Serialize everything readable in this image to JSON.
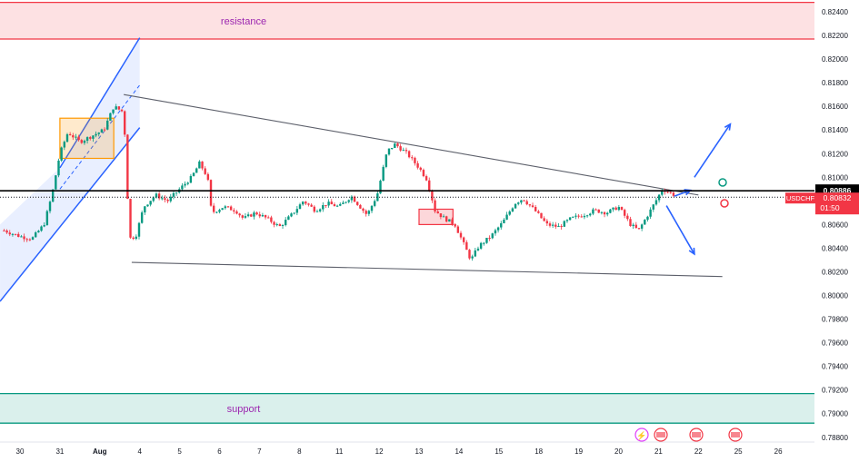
{
  "chart_data": {
    "type": "candlestick",
    "symbol": "USDCHF",
    "current_price": "0.80832",
    "countdown": "01:50",
    "marked_level": "0.80886",
    "y_ticks": [
      "0.82400",
      "0.82200",
      "0.82000",
      "0.81800",
      "0.81600",
      "0.81400",
      "0.81200",
      "0.81000",
      "0.80800",
      "0.80600",
      "0.80400",
      "0.80200",
      "0.80000",
      "0.79800",
      "0.79600",
      "0.79400",
      "0.79200",
      "0.79000",
      "0.78800"
    ],
    "x_ticks": [
      "30",
      "31",
      "Aug",
      "4",
      "5",
      "6",
      "7",
      "8",
      "11",
      "12",
      "13",
      "14",
      "15",
      "18",
      "19",
      "20",
      "21",
      "22",
      "25",
      "26"
    ],
    "ylim": [
      0.7876,
      0.825
    ],
    "zones": [
      {
        "label": "resistance",
        "from": 0.8217,
        "to": 0.8248,
        "color": "#f23645"
      },
      {
        "label": "support",
        "from": 0.7892,
        "to": 0.7917,
        "color": "#089981"
      }
    ],
    "colors": {
      "up": "#089981",
      "down": "#f23645",
      "channel": "#2962ff",
      "axis_text": "#131722",
      "grid": "#e0e3eb"
    },
    "close_path": [
      [
        -0.4,
        0.8055
      ],
      [
        0.0,
        0.805
      ],
      [
        0.3,
        0.8048
      ],
      [
        0.6,
        0.806
      ],
      [
        0.8,
        0.8085
      ],
      [
        1.0,
        0.812
      ],
      [
        1.2,
        0.8138
      ],
      [
        1.5,
        0.813
      ],
      [
        1.8,
        0.8135
      ],
      [
        2.1,
        0.814
      ],
      [
        2.35,
        0.816
      ],
      [
        2.6,
        0.8155
      ],
      [
        2.7,
        0.808
      ],
      [
        2.72,
        0.8048
      ],
      [
        2.9,
        0.805
      ],
      [
        3.1,
        0.8075
      ],
      [
        3.4,
        0.8085
      ],
      [
        3.7,
        0.808
      ],
      [
        4.0,
        0.809
      ],
      [
        4.3,
        0.81
      ],
      [
        4.5,
        0.8112
      ],
      [
        4.7,
        0.81
      ],
      [
        4.8,
        0.807
      ],
      [
        5.1,
        0.8075
      ],
      [
        5.4,
        0.8072
      ],
      [
        5.6,
        0.8065
      ],
      [
        5.9,
        0.807
      ],
      [
        6.2,
        0.8065
      ],
      [
        6.5,
        0.8058
      ],
      [
        6.8,
        0.8068
      ],
      [
        7.1,
        0.808
      ],
      [
        7.4,
        0.8072
      ],
      [
        7.7,
        0.8078
      ],
      [
        8.0,
        0.8075
      ],
      [
        8.3,
        0.8084
      ],
      [
        8.7,
        0.8068
      ],
      [
        8.95,
        0.8085
      ],
      [
        9.2,
        0.8122
      ],
      [
        9.4,
        0.8128
      ],
      [
        9.7,
        0.812
      ],
      [
        10.0,
        0.8108
      ],
      [
        10.2,
        0.8098
      ],
      [
        10.4,
        0.8072
      ],
      [
        10.6,
        0.8066
      ],
      [
        10.9,
        0.806
      ],
      [
        11.1,
        0.8045
      ],
      [
        11.3,
        0.803
      ],
      [
        11.5,
        0.8042
      ],
      [
        11.8,
        0.805
      ],
      [
        12.1,
        0.8062
      ],
      [
        12.4,
        0.8078
      ],
      [
        12.6,
        0.8082
      ],
      [
        12.9,
        0.8072
      ],
      [
        13.2,
        0.806
      ],
      [
        13.5,
        0.8058
      ],
      [
        13.8,
        0.8065
      ],
      [
        14.1,
        0.8068
      ],
      [
        14.4,
        0.8072
      ],
      [
        14.7,
        0.807
      ],
      [
        15.0,
        0.8075
      ],
      [
        15.3,
        0.806
      ],
      [
        15.5,
        0.8055
      ],
      [
        15.8,
        0.8072
      ],
      [
        16.1,
        0.809
      ],
      [
        16.4,
        0.8085
      ]
    ],
    "channel": {
      "lower": [
        [
          -0.5,
          0.7995
        ],
        [
          3.0,
          0.8142
        ]
      ],
      "upper": [
        [
          1.0,
          0.8108
        ],
        [
          3.0,
          0.8218
        ]
      ],
      "mid": [
        [
          1.0,
          0.809
        ],
        [
          3.0,
          0.8178
        ]
      ]
    },
    "triangle": {
      "upper": [
        [
          2.6,
          0.817
        ],
        [
          17.0,
          0.8085
        ]
      ],
      "lower": [
        [
          2.8,
          0.8028
        ],
        [
          17.6,
          0.8016
        ]
      ]
    },
    "boxes": [
      {
        "x0": 1.0,
        "x1": 2.35,
        "y0": 0.8116,
        "y1": 0.815,
        "color": "#ff9800"
      },
      {
        "x0": 10.0,
        "x1": 10.85,
        "y0": 0.806,
        "y1": 0.8073,
        "color": "#f23645"
      }
    ],
    "projection_arrows": [
      [
        [
          16.4,
          0.8084
        ],
        [
          16.8,
          0.8089
        ]
      ],
      [
        [
          16.9,
          0.81
        ],
        [
          17.8,
          0.8145
        ]
      ],
      [
        [
          16.2,
          0.8076
        ],
        [
          16.9,
          0.8035
        ]
      ]
    ]
  }
}
